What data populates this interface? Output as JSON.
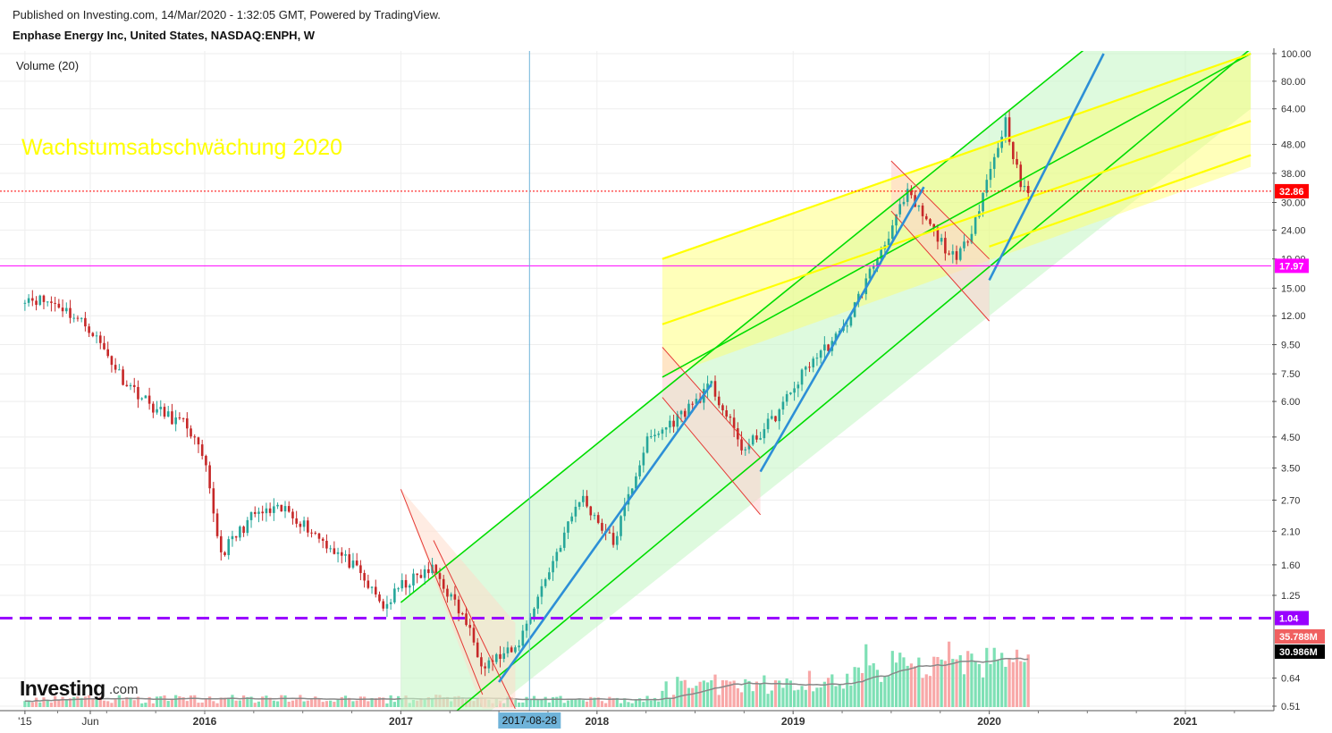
{
  "header": {
    "published": "Published on Investing.com, 14/Mar/2020 - 1:32:05 GMT, Powered by TradingView.",
    "instrument": "Enphase Energy Inc, United States, NASDAQ:ENPH, W"
  },
  "branding": {
    "logo": "Investing",
    "logo_suffix": ".com"
  },
  "chart_data": {
    "type": "candlestick",
    "title": "Enphase Energy Inc, United States, NASDAQ:ENPH, W",
    "indicator_label": "Volume (20)",
    "annotation": "Wachstumsabschwächung 2020",
    "y_scale": "log",
    "ylim": [
      0.5,
      100
    ],
    "y_ticks": [
      {
        "value": 100,
        "label": "100.00"
      },
      {
        "value": 80,
        "label": "80.00"
      },
      {
        "value": 64,
        "label": "64.00"
      },
      {
        "value": 48,
        "label": "48.00"
      },
      {
        "value": 38,
        "label": "38.00"
      },
      {
        "value": 30,
        "label": "30.00"
      },
      {
        "value": 24,
        "label": "24.00"
      },
      {
        "value": 19,
        "label": "19.00"
      },
      {
        "value": 15,
        "label": "15.00"
      },
      {
        "value": 12,
        "label": "12.00"
      },
      {
        "value": 9.5,
        "label": "9.50"
      },
      {
        "value": 7.5,
        "label": "7.50"
      },
      {
        "value": 6,
        "label": "6.00"
      },
      {
        "value": 4.5,
        "label": "4.50"
      },
      {
        "value": 3.5,
        "label": "3.50"
      },
      {
        "value": 2.7,
        "label": "2.70"
      },
      {
        "value": 2.1,
        "label": "2.10"
      },
      {
        "value": 1.6,
        "label": "1.60"
      },
      {
        "value": 1.25,
        "label": "1.25"
      },
      {
        "value": 0.64,
        "label": "0.64"
      },
      {
        "value": 0.51,
        "label": "0.51"
      }
    ],
    "x_labels": [
      {
        "date": "2015-02",
        "label": "'15"
      },
      {
        "date": "2015-06",
        "label": "Jun"
      },
      {
        "date": "2016-01",
        "label": "2016"
      },
      {
        "date": "2017-01",
        "label": "2017"
      },
      {
        "date": "2018-01",
        "label": "2018"
      },
      {
        "date": "2019-01",
        "label": "2019"
      },
      {
        "date": "2020-01",
        "label": "2020"
      },
      {
        "date": "2021-01",
        "label": "2021"
      }
    ],
    "crosshair": {
      "date": "2017-08-28",
      "label": "2017-08-28"
    },
    "horizontal_levels": [
      {
        "value": 32.86,
        "label": "32.86",
        "color": "#ff0000",
        "style": "dotted"
      },
      {
        "value": 17.97,
        "label": "17.97",
        "color": "#ff00ff",
        "style": "solid"
      },
      {
        "value": 1.04,
        "label": "1.04",
        "color": "#9900ff",
        "style": "dashed"
      }
    ],
    "volume_labels": [
      {
        "label": "35.788M",
        "color": "#f06060"
      },
      {
        "label": "30.986M",
        "color": "#000000"
      }
    ],
    "colors": {
      "up": "#26a69a",
      "down": "#c62828",
      "vol_up": "#7ee0b5",
      "vol_down": "#f8a8a8",
      "trend": "#00e000",
      "yellow_channel": "#ffff00",
      "blue_trend": "#2d8fd6"
    },
    "ohlc_path": [
      [
        "2015-02",
        14.0
      ],
      [
        "2015-04",
        13.2
      ],
      [
        "2015-06",
        10.8
      ],
      [
        "2015-08",
        7.2
      ],
      [
        "2015-10",
        5.6
      ],
      [
        "2015-12",
        4.9
      ],
      [
        "2016-01",
        3.6
      ],
      [
        "2016-02",
        1.75
      ],
      [
        "2016-04",
        2.4
      ],
      [
        "2016-06",
        2.5
      ],
      [
        "2016-08",
        2.0
      ],
      [
        "2016-10",
        1.6
      ],
      [
        "2016-12",
        1.13
      ],
      [
        "2017-01",
        1.35
      ],
      [
        "2017-03",
        1.55
      ],
      [
        "2017-05",
        1.0
      ],
      [
        "2017-06",
        0.72
      ],
      [
        "2017-08",
        0.8
      ],
      [
        "2017-10",
        1.5
      ],
      [
        "2017-12",
        2.8
      ],
      [
        "2018-02",
        1.9
      ],
      [
        "2018-04",
        4.3
      ],
      [
        "2018-06",
        5.3
      ],
      [
        "2018-08",
        6.8
      ],
      [
        "2018-10",
        4.0
      ],
      [
        "2018-12",
        5.4
      ],
      [
        "2019-02",
        8.2
      ],
      [
        "2019-04",
        10.5
      ],
      [
        "2019-06",
        18.5
      ],
      [
        "2019-08",
        32.0
      ],
      [
        "2019-10",
        22.0
      ],
      [
        "2019-11",
        18.5
      ],
      [
        "2019-12",
        25.0
      ],
      [
        "2020-02",
        58.0
      ],
      [
        "2020-03",
        32.86
      ]
    ]
  }
}
